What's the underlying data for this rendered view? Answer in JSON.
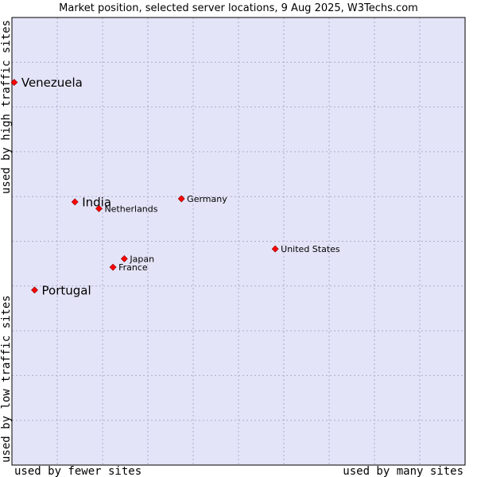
{
  "chart_data": {
    "type": "scatter",
    "title": "Market position, selected server locations, 9 Aug 2025, W3Techs.com",
    "xlabel_low": "used by fewer sites",
    "xlabel_high": "used by many sites",
    "ylabel_low": "used by low traffic sites",
    "ylabel_high": "used by high traffic sites",
    "xlim": [
      0,
      100
    ],
    "ylim": [
      0,
      100
    ],
    "grid": true,
    "colors": {
      "plot_bg": "#e4e4f8",
      "grid": "#aaaacc",
      "border": "#000000",
      "marker": "#ff0000",
      "marker_stroke": "#880000"
    },
    "points": [
      {
        "label": "Venezuela",
        "x": 0.5,
        "y": 85.5,
        "size": "large"
      },
      {
        "label": "India",
        "x": 13.9,
        "y": 58.8,
        "size": "large"
      },
      {
        "label": "Netherlands",
        "x": 19.2,
        "y": 57.3,
        "size": "small"
      },
      {
        "label": "Germany",
        "x": 37.4,
        "y": 59.5,
        "size": "small"
      },
      {
        "label": "United States",
        "x": 58.1,
        "y": 48.3,
        "size": "small"
      },
      {
        "label": "Japan",
        "x": 24.8,
        "y": 46.1,
        "size": "small"
      },
      {
        "label": "France",
        "x": 22.3,
        "y": 44.2,
        "size": "small"
      },
      {
        "label": "Portugal",
        "x": 5.0,
        "y": 39.1,
        "size": "large"
      }
    ]
  }
}
